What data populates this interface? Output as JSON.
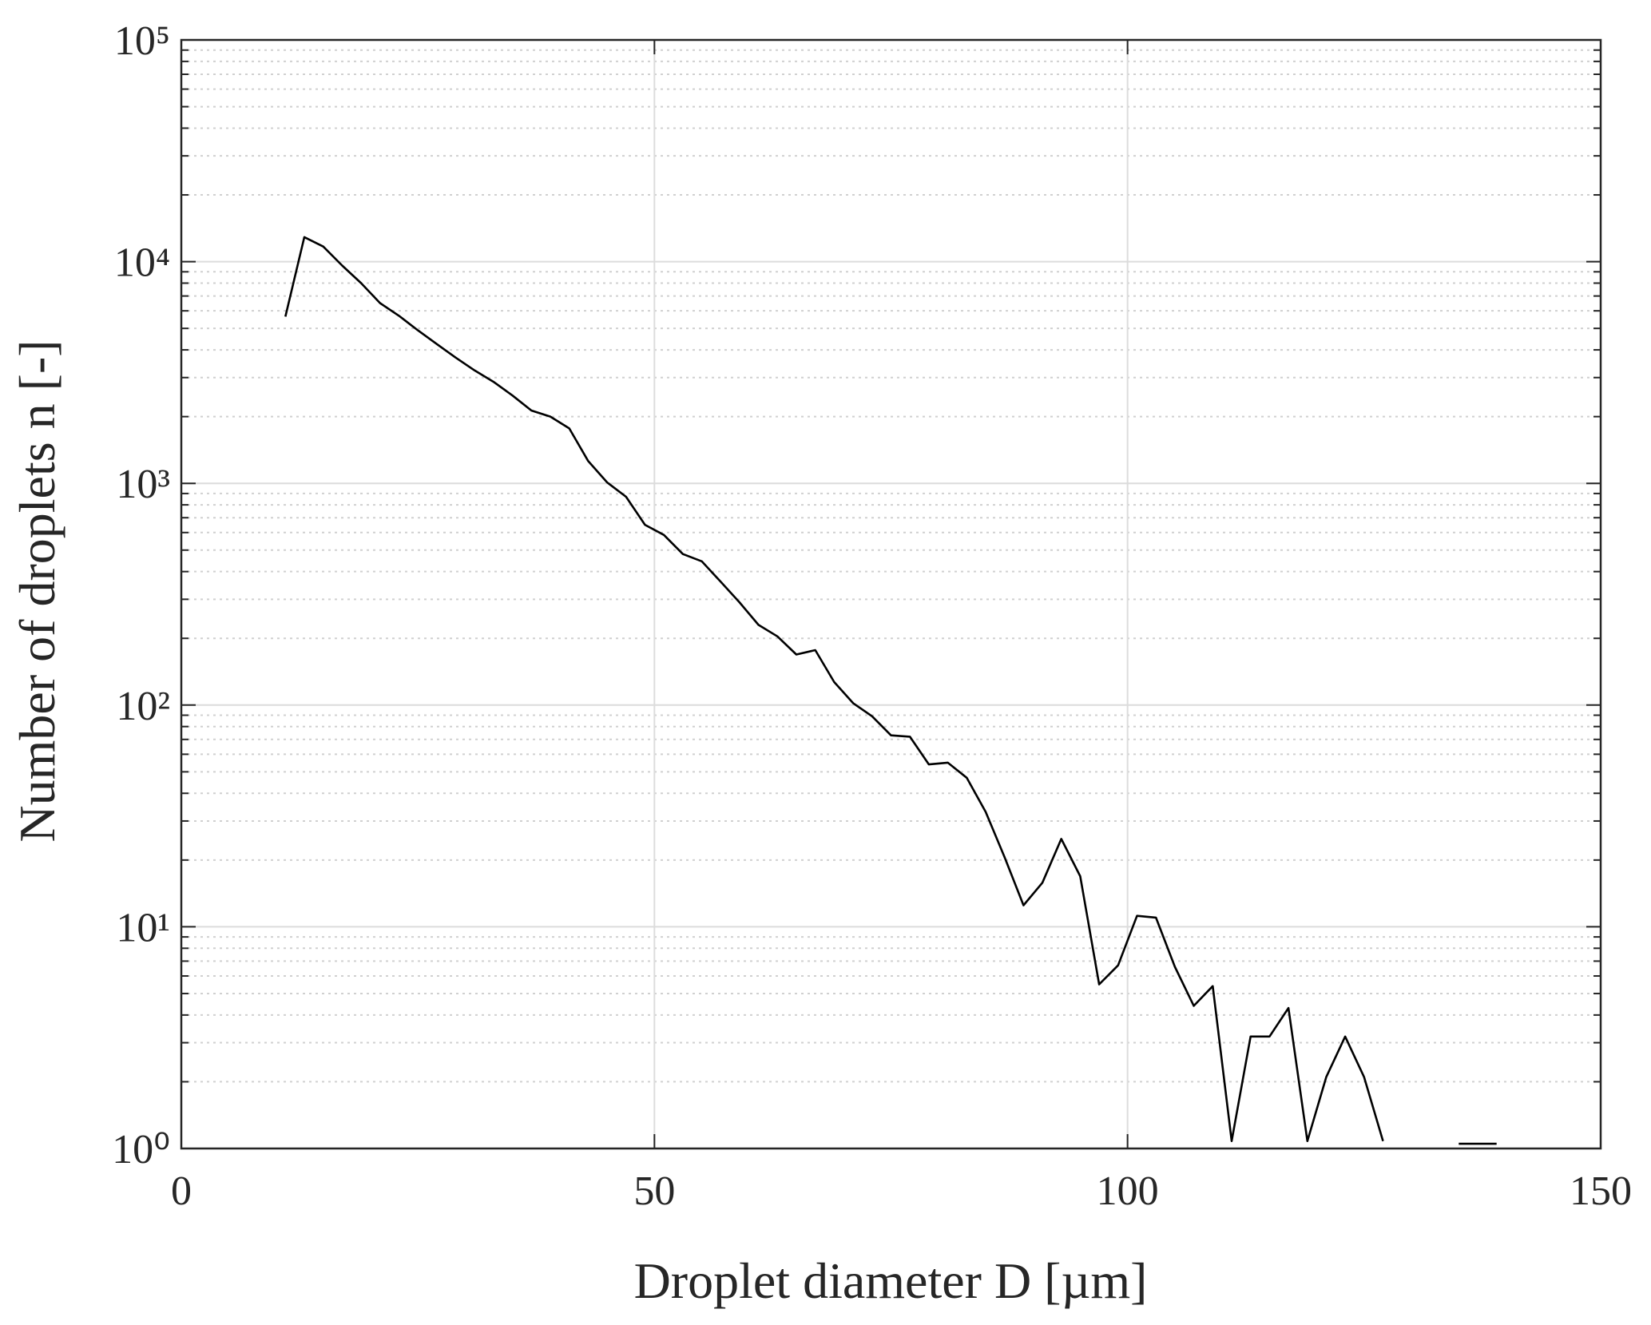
{
  "chart_data": {
    "type": "line",
    "xlabel": "Droplet diameter D [µm]",
    "ylabel": "Number of droplets n [-]",
    "x": [
      11,
      13,
      15,
      17,
      19,
      21,
      23,
      25,
      27,
      29,
      31,
      33,
      35,
      37,
      39,
      41,
      43,
      45,
      47,
      49,
      51,
      53,
      55,
      57,
      59,
      61,
      63,
      65,
      67,
      69,
      71,
      73,
      75,
      77,
      79,
      81,
      83,
      85,
      87,
      89,
      91,
      93,
      95,
      97,
      99,
      101,
      103,
      105,
      107,
      109,
      111,
      113,
      115,
      117,
      119,
      121,
      123,
      125,
      127,
      129,
      131,
      133,
      135,
      137,
      139
    ],
    "values": [
      5650,
      12900,
      11700,
      9600,
      8000,
      6500,
      5700,
      4900,
      4250,
      3690,
      3230,
      2870,
      2490,
      2130,
      2000,
      1770,
      1260,
      1010,
      870,
      650,
      585,
      480,
      445,
      360,
      290,
      230,
      204,
      169,
      177,
      127,
      102,
      89,
      73,
      72,
      54,
      55,
      47,
      33,
      20.6,
      12.5,
      15.8,
      24.9,
      16.9,
      5.5,
      6.7,
      11.2,
      11.0,
      6.6,
      4.4,
      5.4,
      1.08,
      3.2,
      3.2,
      4.3,
      1.08,
      2.1,
      3.2,
      2.1,
      1.08,
      null,
      null,
      null,
      1.05,
      1.05,
      1.05
    ],
    "color": "#000000",
    "xlim": [
      0,
      150
    ],
    "xticks": [
      0,
      50,
      100,
      150
    ],
    "ylim": [
      1,
      100000
    ],
    "yscale": "log",
    "yticks": [
      {
        "value": 1,
        "label": "10⁰"
      },
      {
        "value": 10,
        "label": "10¹"
      },
      {
        "value": 100,
        "label": "10²"
      },
      {
        "value": 1000,
        "label": "10³"
      },
      {
        "value": 10000,
        "label": "10⁴"
      },
      {
        "value": 100000,
        "label": "10⁵"
      }
    ],
    "grid": true,
    "minor_grid": true
  }
}
